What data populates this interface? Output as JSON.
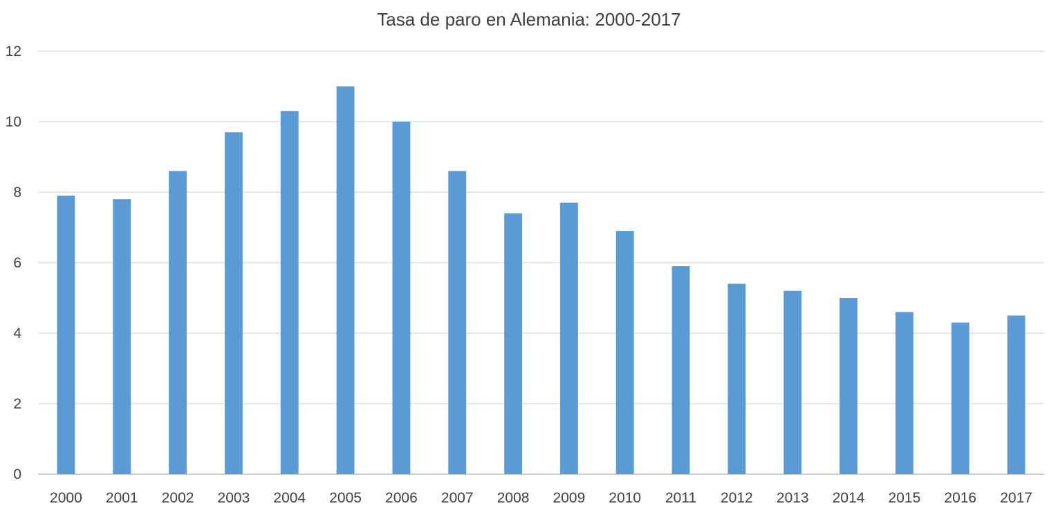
{
  "chart_data": {
    "type": "bar",
    "title": "Tasa de paro en Alemania: 2000-2017",
    "xlabel": "",
    "ylabel": "",
    "categories": [
      "2000",
      "2001",
      "2002",
      "2003",
      "2004",
      "2005",
      "2006",
      "2007",
      "2008",
      "2009",
      "2010",
      "2011",
      "2012",
      "2013",
      "2014",
      "2015",
      "2016",
      "2017"
    ],
    "series": [
      {
        "values": [
          7.9,
          7.8,
          8.6,
          9.7,
          10.3,
          11.0,
          10.0,
          8.6,
          7.4,
          7.7,
          6.9,
          5.9,
          5.4,
          5.2,
          5.0,
          4.6,
          4.3,
          4.5
        ]
      }
    ],
    "ylim": [
      0,
      12
    ],
    "yticks": [
      "0",
      "2",
      "4",
      "6",
      "8",
      "10",
      "12"
    ],
    "grid": true,
    "legend": "none",
    "colors": {
      "bar": "#5b9bd5",
      "grid": "#d9d9d9",
      "text": "#404040"
    }
  }
}
